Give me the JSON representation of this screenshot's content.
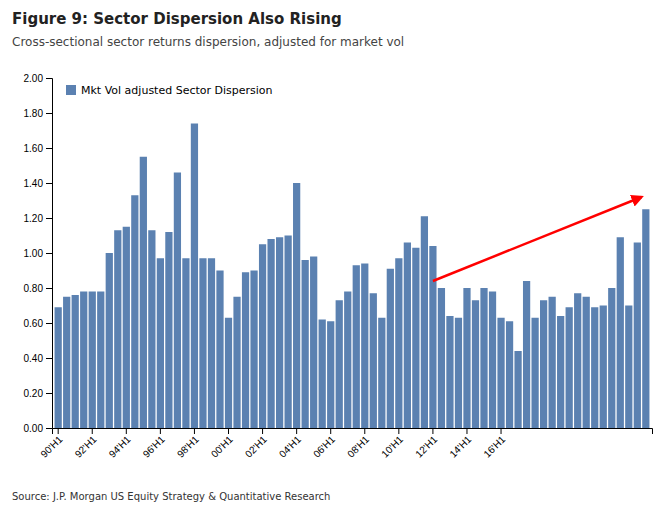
{
  "chart_data": {
    "type": "bar",
    "title": "Figure 9: Sector Dispersion Also Rising",
    "subtitle": "Cross-sectional sector returns dispersion, adjusted for market vol",
    "source": "Source: J.P. Morgan US Equity Strategy & Quantitative Research",
    "categories": [
      "90'H1",
      null,
      null,
      null,
      "92'H1",
      null,
      null,
      null,
      "94'H1",
      null,
      null,
      null,
      "96'H1",
      null,
      null,
      null,
      "98'H1",
      null,
      null,
      null,
      "00'H1",
      null,
      null,
      null,
      "02'H1",
      null,
      null,
      null,
      "04'H1",
      null,
      null,
      null,
      "06'H1",
      null,
      null,
      null,
      "08'H1",
      null,
      null,
      null,
      "10'H1",
      null,
      null,
      null,
      "12'H1",
      null,
      null,
      null,
      "14'H1",
      null,
      null,
      null,
      "16'H1",
      null,
      null,
      null,
      null,
      null,
      null,
      null,
      null,
      null,
      null,
      null,
      null,
      null,
      null,
      null,
      null,
      null
    ],
    "series": [
      {
        "name": "Mkt Vol adjusted Sector Dispersion",
        "color": "#5b81b1",
        "values": [
          0.69,
          0.75,
          0.76,
          0.78,
          0.78,
          0.78,
          1.0,
          1.13,
          1.15,
          1.33,
          1.55,
          1.13,
          0.97,
          1.12,
          1.46,
          0.97,
          1.74,
          0.97,
          0.97,
          0.9,
          0.63,
          0.75,
          0.89,
          0.9,
          1.05,
          1.08,
          1.09,
          1.1,
          1.4,
          0.96,
          0.98,
          0.62,
          0.61,
          0.73,
          0.78,
          0.93,
          0.94,
          0.77,
          0.63,
          0.91,
          0.97,
          1.06,
          1.03,
          1.21,
          1.04,
          0.8,
          0.64,
          0.63,
          0.8,
          0.73,
          0.8,
          0.78,
          0.63,
          0.61,
          0.44,
          0.84,
          0.63,
          0.73,
          0.75,
          0.64,
          0.69,
          0.77,
          0.75,
          0.69,
          0.7,
          0.8,
          1.09,
          0.7,
          1.06,
          1.25
        ]
      }
    ],
    "ylim": [
      0.0,
      2.0
    ],
    "yticks": [
      {
        "value": 0.0,
        "label": "0.00"
      },
      {
        "value": 0.2,
        "label": "0.20"
      },
      {
        "value": 0.4,
        "label": "0.40"
      },
      {
        "value": 0.6,
        "label": "0.60"
      },
      {
        "value": 0.8,
        "label": "0.80"
      },
      {
        "value": 1.0,
        "label": "1.00"
      },
      {
        "value": 1.2,
        "label": "1.20"
      },
      {
        "value": 1.4,
        "label": "1.40"
      },
      {
        "value": 1.6,
        "label": "1.60"
      },
      {
        "value": 1.8,
        "label": "1.80"
      },
      {
        "value": 2.0,
        "label": "2.00"
      }
    ],
    "arrow": {
      "x": [
        44,
        68.5
      ],
      "y": [
        0.84,
        1.32
      ],
      "color": "red"
    },
    "legend": "top-left",
    "grid": false
  }
}
